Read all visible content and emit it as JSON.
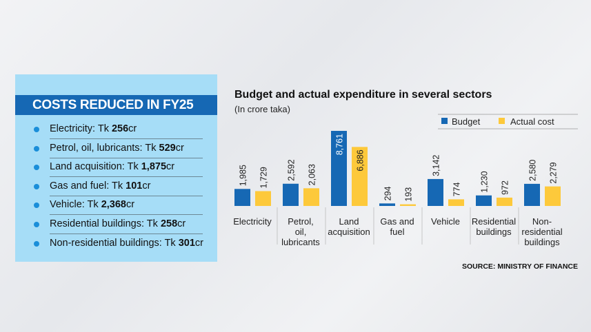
{
  "panel": {
    "title": "COSTS REDUCED IN FY25",
    "items": [
      {
        "label": "Electricity: Tk ",
        "value": "256",
        "unit": "cr"
      },
      {
        "label": "Petrol, oil, lubricants: Tk ",
        "value": "529",
        "unit": "cr"
      },
      {
        "label": "Land acquisition: Tk ",
        "value": "1,875",
        "unit": "cr"
      },
      {
        "label": "Gas and fuel: Tk ",
        "value": "101",
        "unit": "cr"
      },
      {
        "label": "Vehicle: Tk ",
        "value": "2,368",
        "unit": "cr"
      },
      {
        "label": "Residential buildings: Tk ",
        "value": "258",
        "unit": "cr"
      },
      {
        "label": "Non-residential buildings: Tk ",
        "value": "301",
        "unit": "cr"
      }
    ]
  },
  "source": "SOURCE: MINISTRY OF FINANCE",
  "chart_data": {
    "type": "bar",
    "title": "Budget and actual expenditure in several sectors",
    "subtitle": "(In crore taka)",
    "categories": [
      [
        "Electricity"
      ],
      [
        "Petrol,",
        "oil,",
        "lubricants"
      ],
      [
        "Land",
        "acquisition"
      ],
      [
        "Gas and",
        "fuel"
      ],
      [
        "Vehicle"
      ],
      [
        "Residential",
        "buildings"
      ],
      [
        "Non-",
        "residential",
        "buildings"
      ]
    ],
    "series": [
      {
        "name": "Budget",
        "color": "#1668b4",
        "values": [
          1985,
          2592,
          8761,
          294,
          3142,
          1230,
          2580
        ],
        "labels": [
          "1,985",
          "2,592",
          "8,761",
          "294",
          "3,142",
          "1,230",
          "2,580"
        ]
      },
      {
        "name": "Actual cost",
        "color": "#fdc93b",
        "values": [
          1729,
          2063,
          6886,
          193,
          774,
          972,
          2279
        ],
        "labels": [
          "1,729",
          "2,063",
          "6,886",
          "193",
          "774",
          "972",
          "2,279"
        ]
      }
    ],
    "legend": "top-right",
    "grid": false
  }
}
